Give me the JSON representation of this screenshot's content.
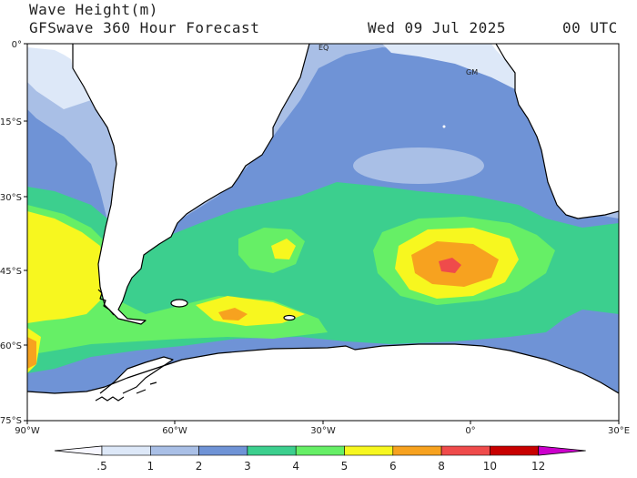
{
  "header": {
    "title": "Wave Height(m)",
    "subtitle": "GFSwave 360 Hour Forecast",
    "date": "Wed 09 Jul 2025",
    "time": "00 UTC"
  },
  "axes": {
    "lat_labels": [
      "0°",
      "15°S",
      "30°S",
      "45°S",
      "60°S",
      "75°S"
    ],
    "lon_labels": [
      "90°W",
      "60°W",
      "30°W",
      "0°",
      "30°E"
    ]
  },
  "sites": [
    "EQ",
    "GM"
  ],
  "colorbar": {
    "labels": [
      ".5",
      "1",
      "2",
      "3",
      "4",
      "5",
      "6",
      "8",
      "10",
      "12"
    ],
    "colors": [
      "#f7f7ff",
      "#dde8f8",
      "#a9bfe6",
      "#6f93d6",
      "#3ccf8e",
      "#66ef66",
      "#f7f71f",
      "#f7a21f",
      "#ef4b4b",
      "#c80000",
      "#cc00cc"
    ]
  },
  "palette": {
    "land": "#ffffff",
    "coast": "#000000",
    "c1": "#dde8f8",
    "c2": "#a9bfe6",
    "c3": "#6f93d6",
    "c4": "#3ccf8e",
    "c5": "#66ef66",
    "c6": "#f7f71f",
    "c8": "#f7a21f",
    "c10": "#ef4b4b"
  }
}
